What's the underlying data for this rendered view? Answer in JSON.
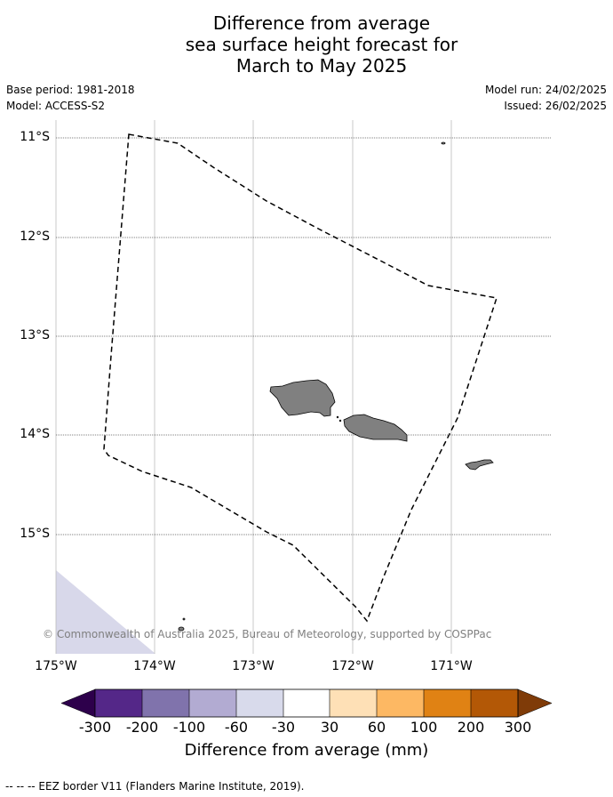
{
  "title": {
    "line1": "Difference from average",
    "line2": "sea surface height forecast for",
    "line3": "March to May 2025"
  },
  "meta": {
    "base_period": "Base period: 1981-2018",
    "model": "Model: ACCESS-S2",
    "model_run": "Model run: 24/02/2025",
    "issued": "Issued: 26/02/2025"
  },
  "map": {
    "lat_labels": [
      "11°S",
      "12°S",
      "13°S",
      "14°S",
      "15°S"
    ],
    "lon_labels": [
      "175°W",
      "174°W",
      "173°W",
      "172°W",
      "171°W"
    ],
    "land_color": "#808080",
    "anomaly_color": "#d8d8ea",
    "copyright": "© Commonwealth of Australia 2025, Bureau of Meteorology, supported by COSPPac"
  },
  "colorbar": {
    "label": "Difference from average (mm)",
    "ticks": [
      "-300",
      "-200",
      "-100",
      "-60",
      "-30",
      "30",
      "60",
      "100",
      "200",
      "300"
    ],
    "colors": [
      "#2d004b",
      "#542788",
      "#8073ac",
      "#b2abd2",
      "#d8daeb",
      "#ffffff",
      "#fee0b6",
      "#fdb863",
      "#e08214",
      "#b35806",
      "#7f3b08"
    ]
  },
  "footnote": "--  --  -- EEZ border V11 (Flanders Marine Institute, 2019)."
}
